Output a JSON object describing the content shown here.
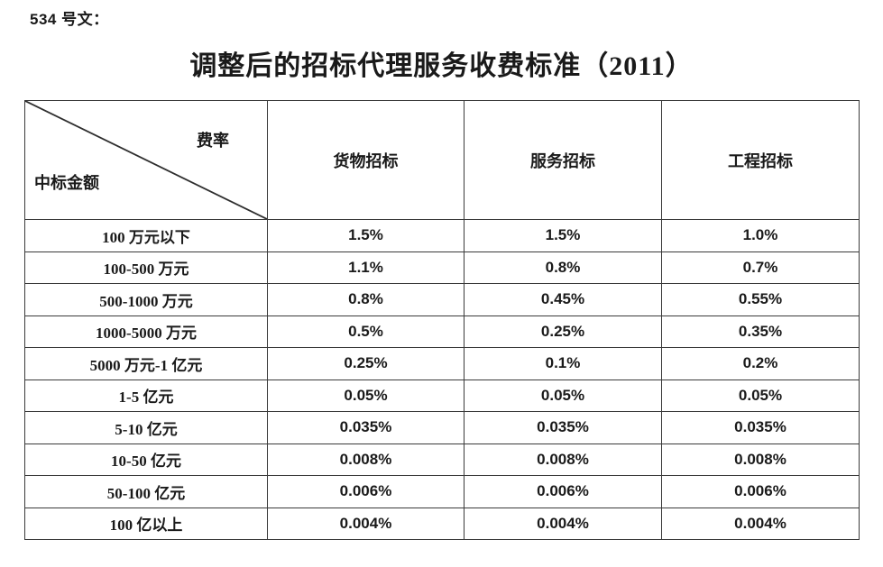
{
  "page": {
    "doc_label": "534 号文：",
    "title": "调整后的招标代理服务收费标准（2011）"
  },
  "table": {
    "corner": {
      "top_right_label": "费率",
      "bottom_left_label": "中标金额"
    },
    "columns": [
      "货物招标",
      "服务招标",
      "工程招标"
    ],
    "rows": [
      {
        "label": "100 万元以下",
        "values": [
          "1.5%",
          "1.5%",
          "1.0%"
        ]
      },
      {
        "label": "100-500 万元",
        "values": [
          "1.1%",
          "0.8%",
          "0.7%"
        ]
      },
      {
        "label": "500-1000 万元",
        "values": [
          "0.8%",
          "0.45%",
          "0.55%"
        ]
      },
      {
        "label": "1000-5000 万元",
        "values": [
          "0.5%",
          "0.25%",
          "0.35%"
        ]
      },
      {
        "label": "5000 万元-1 亿元",
        "values": [
          "0.25%",
          "0.1%",
          "0.2%"
        ]
      },
      {
        "label": "1-5 亿元",
        "values": [
          "0.05%",
          "0.05%",
          "0.05%"
        ]
      },
      {
        "label": "5-10 亿元",
        "values": [
          "0.035%",
          "0.035%",
          "0.035%"
        ]
      },
      {
        "label": "10-50 亿元",
        "values": [
          "0.008%",
          "0.008%",
          "0.008%"
        ]
      },
      {
        "label": "50-100 亿元",
        "values": [
          "0.006%",
          "0.006%",
          "0.006%"
        ]
      },
      {
        "label": "100 亿以上",
        "values": [
          "0.004%",
          "0.004%",
          "0.004%"
        ]
      }
    ],
    "style": {
      "border_color": "#3a3a3a",
      "text_color": "#1a1a1a",
      "background": "#ffffff"
    }
  }
}
